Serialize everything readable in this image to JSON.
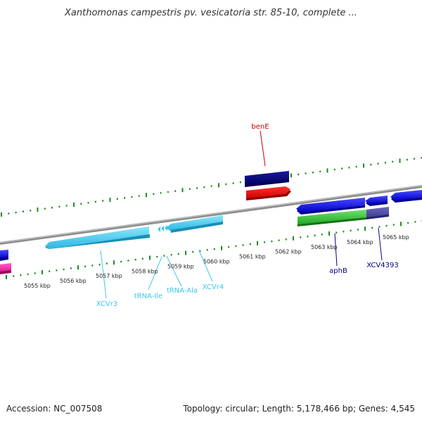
{
  "title": "Xanthomonas campestris pv. vesicatoria str. 85-10, complete ...",
  "accession": "Accession: NC_007508",
  "topology": "Topology: circular; Length: 5,178,466 bp; Genes: 4,545",
  "colors": {
    "backbone": "#888888",
    "tick": "#1e8a1e",
    "red": "#cc0000",
    "navy": "#000080",
    "blue": "#0000ee",
    "rna": "#3cc8e8"
  },
  "kbp_labels": [
    "5055 kbp",
    "5056 kbp",
    "5057 kbp",
    "5058 kbp",
    "5059 kbp",
    "5060 kbp",
    "5061 kbp",
    "5062 kbp",
    "5063 kbp",
    "5064 kbp",
    "5065 kbp"
  ],
  "gene_labels": {
    "benE": "benE",
    "aphB": "aphB",
    "xcv4393": "XCV4393",
    "xcvr3": "XCVr3",
    "trna_ile": "tRNA-Ile",
    "trna_ala": "tRNA-Ala",
    "xcvr4": "XCVr4"
  }
}
